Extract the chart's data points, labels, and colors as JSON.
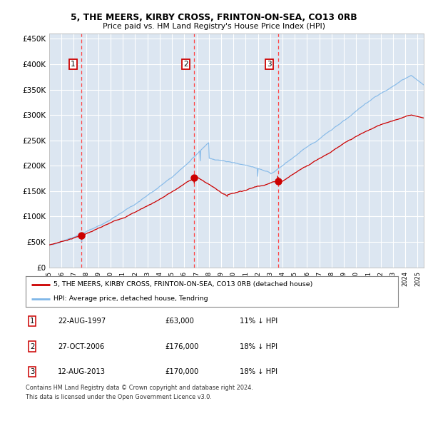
{
  "title1": "5, THE MEERS, KIRBY CROSS, FRINTON-ON-SEA, CO13 0RB",
  "title2": "Price paid vs. HM Land Registry's House Price Index (HPI)",
  "ylabel_ticks": [
    "£0",
    "£50K",
    "£100K",
    "£150K",
    "£200K",
    "£250K",
    "£300K",
    "£350K",
    "£400K",
    "£450K"
  ],
  "ylabel_values": [
    0,
    50000,
    100000,
    150000,
    200000,
    250000,
    300000,
    350000,
    400000,
    450000
  ],
  "ylim": [
    0,
    460000
  ],
  "xlim_start": 1995.0,
  "xlim_end": 2025.5,
  "bg_color": "#dce6f1",
  "grid_color": "#ffffff",
  "hpi_color": "#7eb6e8",
  "price_color": "#cc0000",
  "vline_color": "#ff4444",
  "vline1_x": 1997.64,
  "vline2_x": 2006.82,
  "vline3_x": 2013.62,
  "sale1_x": 1997.64,
  "sale1_y": 63000,
  "sale2_x": 2006.82,
  "sale2_y": 176000,
  "sale3_x": 2013.62,
  "sale3_y": 170000,
  "legend_red_label": "5, THE MEERS, KIRBY CROSS, FRINTON-ON-SEA, CO13 0RB (detached house)",
  "legend_blue_label": "HPI: Average price, detached house, Tendring",
  "table_rows": [
    {
      "num": "1",
      "date": "22-AUG-1997",
      "price": "£63,000",
      "hpi": "11% ↓ HPI"
    },
    {
      "num": "2",
      "date": "27-OCT-2006",
      "price": "£176,000",
      "hpi": "18% ↓ HPI"
    },
    {
      "num": "3",
      "date": "12-AUG-2013",
      "price": "£170,000",
      "hpi": "18% ↓ HPI"
    }
  ],
  "footnote1": "Contains HM Land Registry data © Crown copyright and database right 2024.",
  "footnote2": "This data is licensed under the Open Government Licence v3.0."
}
